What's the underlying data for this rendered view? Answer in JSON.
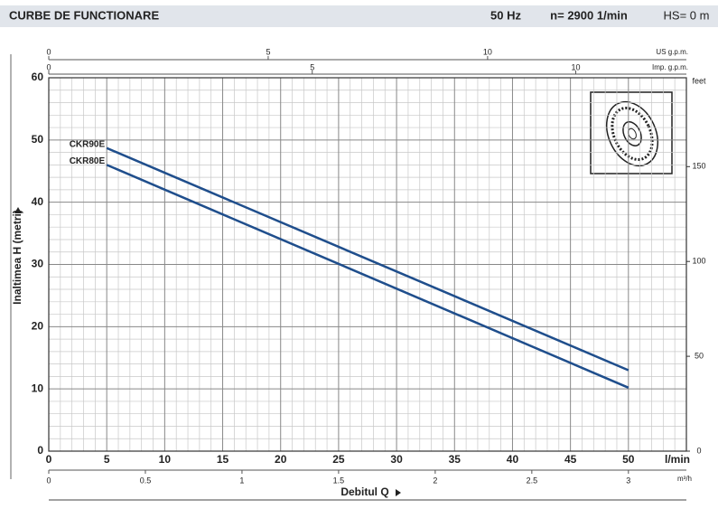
{
  "chart_data": {
    "type": "line",
    "title": "CURBE DE FUNCTIONARE",
    "header_info": [
      "50 Hz",
      "n= 2900  1/min",
      "HS= 0 m"
    ],
    "x_label": "Debitul  Q",
    "x_unit": "l/min",
    "y_label": "Inaltimea  H  (metri)",
    "x": [
      5,
      50
    ],
    "series": [
      {
        "name": "CKR90E",
        "color": "#1f4e8c",
        "values": [
          48.7,
          13
        ]
      },
      {
        "name": "CKR80E",
        "color": "#1f4e8c",
        "values": [
          46,
          10.2
        ]
      }
    ],
    "xlim": [
      0,
      55
    ],
    "xticks": [
      0,
      5,
      10,
      15,
      20,
      25,
      30,
      35,
      40,
      45,
      50
    ],
    "ylim": [
      0,
      60
    ],
    "yticks": [
      0,
      10,
      20,
      30,
      40,
      50,
      60
    ],
    "xminorticks": [
      1,
      2,
      3,
      4,
      6,
      7,
      8,
      9,
      11,
      12,
      13,
      14,
      16,
      17,
      18,
      19,
      21,
      22,
      23,
      24,
      26,
      27,
      28,
      29,
      31,
      32,
      33,
      34,
      36,
      37,
      38,
      39,
      41,
      42,
      43,
      44,
      46,
      47,
      48,
      49,
      51,
      52,
      53,
      54,
      55
    ],
    "yminorticks": [
      2,
      4,
      6,
      8,
      12,
      14,
      16,
      18,
      22,
      24,
      26,
      28,
      32,
      34,
      36,
      38,
      42,
      44,
      46,
      48,
      52,
      54,
      56,
      58
    ],
    "grid": true,
    "y2_label": "feet",
    "y2lim": [
      0,
      196.85
    ],
    "y2ticks": [
      0,
      50,
      100,
      150
    ],
    "top_axes": [
      {
        "label": "US g.p.m.",
        "xlim": [
          0,
          14.53
        ],
        "ticks": [
          0,
          5,
          10
        ]
      },
      {
        "label": "Imp. g.p.m.",
        "xlim": [
          0,
          12.1
        ],
        "ticks": [
          0,
          5,
          10
        ]
      }
    ],
    "bottom_axis": {
      "label": "m³/h",
      "xlim": [
        0,
        3.3
      ],
      "ticks": [
        0,
        0.5,
        1,
        1.5,
        2,
        2.5,
        3
      ]
    }
  }
}
